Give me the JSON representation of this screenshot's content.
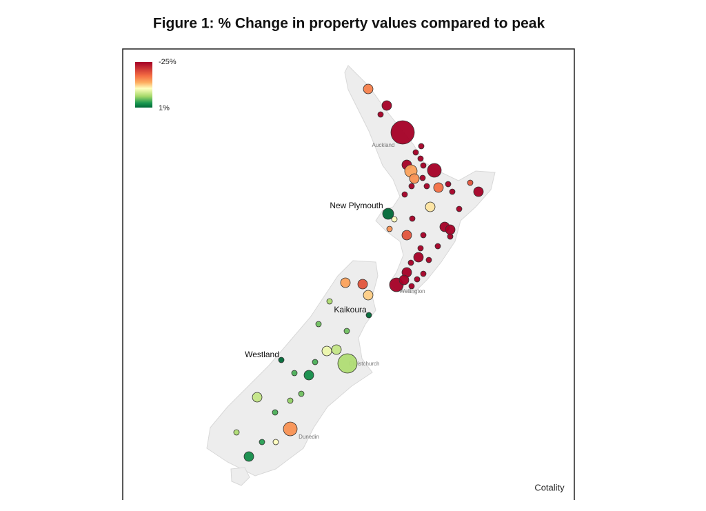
{
  "title": "Figure 1: % Change in property values compared to peak",
  "legend": {
    "ticks": [
      {
        "value": -25,
        "label": "-25%"
      },
      {
        "value": 1,
        "label": "1%"
      }
    ]
  },
  "places": [
    "Auckland",
    "New Plymouth",
    "Wellington",
    "Kaikoura",
    "Westland",
    "Christchurch",
    "Dunedin"
  ],
  "bubbles": [
    -16,
    -25,
    -25,
    -25,
    -25,
    -25,
    -25,
    -25,
    -14,
    -25,
    -25,
    -15,
    -25,
    -25,
    -25,
    -17,
    -25,
    -19,
    -25,
    -25,
    -25,
    -11,
    -25,
    1,
    -10,
    -25,
    -25,
    -25,
    -15,
    -19,
    -25,
    -25,
    -25,
    -25,
    -25,
    -25,
    -25,
    -25,
    -25,
    -25,
    -25,
    -25,
    -25,
    -14,
    -19,
    -12,
    -6,
    1,
    -4,
    -4,
    -7,
    -9,
    -6,
    1,
    -3,
    -1,
    -3,
    -4,
    -7,
    -5,
    -3,
    -15,
    -6,
    -10,
    -2,
    -1
  ],
  "source": "Cotality"
}
